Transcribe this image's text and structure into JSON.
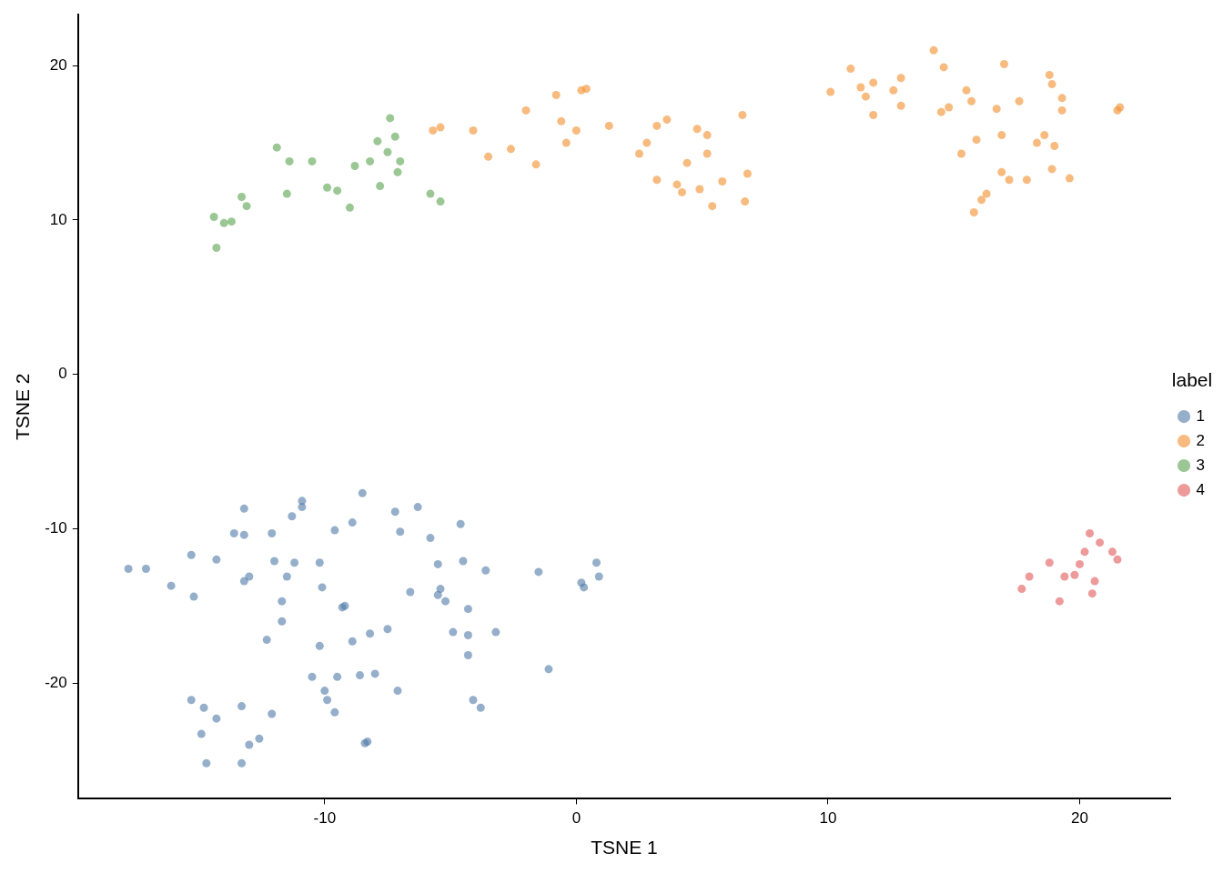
{
  "chart_data": {
    "type": "scatter",
    "x_label": "TSNE 1",
    "y_label": "TSNE 2",
    "xlim": [
      -19.8,
      23.6
    ],
    "ylim": [
      -27.5,
      23.3
    ],
    "xticks": [
      -10,
      0,
      10,
      20
    ],
    "yticks": [
      -20,
      -10,
      0,
      10,
      20
    ],
    "grid": false,
    "legend": "right",
    "legend_title": "label",
    "marker": "circle",
    "series": [
      {
        "name": "1",
        "color": "#4e79a7",
        "x": [
          -17.8,
          -17.1,
          -16.1,
          -15.3,
          -15.2,
          -14.3,
          -15.3,
          -14.8,
          -14.9,
          -14.3,
          -14.7,
          -13.3,
          -13.6,
          -13.2,
          -13.2,
          -13.0,
          -13.2,
          -13.3,
          -13.0,
          -12.6,
          -12.1,
          -12.3,
          -12.1,
          -12.0,
          -11.5,
          -11.2,
          -11.3,
          -11.7,
          -11.7,
          -10.9,
          -10.9,
          -10.2,
          -10.1,
          -10.2,
          -10.5,
          -10.0,
          -9.9,
          -9.6,
          -9.5,
          -9.6,
          -9.2,
          -9.3,
          -8.9,
          -8.9,
          -8.6,
          -8.5,
          -8.3,
          -8.4,
          -8.2,
          -8.0,
          -7.5,
          -7.2,
          -7.0,
          -7.1,
          -6.6,
          -6.3,
          -5.8,
          -5.5,
          -5.5,
          -5.4,
          -5.2,
          -4.9,
          -4.6,
          -4.5,
          -4.3,
          -4.3,
          -4.3,
          -4.1,
          -3.8,
          -3.6,
          -3.2,
          -1.5,
          -1.1,
          0.2,
          0.3,
          0.8,
          0.9
        ],
        "y": [
          -12.6,
          -12.6,
          -13.7,
          -11.7,
          -14.4,
          -12.0,
          -21.1,
          -21.6,
          -23.3,
          -22.3,
          -25.2,
          -25.2,
          -10.3,
          -8.7,
          -10.4,
          -13.1,
          -13.4,
          -21.5,
          -24.0,
          -23.6,
          -22.0,
          -17.2,
          -10.3,
          -12.1,
          -13.1,
          -12.2,
          -9.2,
          -14.7,
          -16.0,
          -8.2,
          -8.6,
          -12.2,
          -13.8,
          -17.6,
          -19.6,
          -20.5,
          -21.1,
          -10.1,
          -19.6,
          -21.9,
          -15.0,
          -15.1,
          -9.6,
          -17.3,
          -19.5,
          -7.7,
          -23.8,
          -23.9,
          -16.8,
          -19.4,
          -16.5,
          -8.9,
          -10.2,
          -20.5,
          -14.1,
          -8.6,
          -10.6,
          -12.3,
          -14.3,
          -13.9,
          -14.7,
          -16.7,
          -9.7,
          -12.1,
          -15.2,
          -16.9,
          -18.2,
          -21.1,
          -21.6,
          -12.7,
          -16.7,
          -12.8,
          -19.1,
          -13.5,
          -13.8,
          -12.2,
          -13.1
        ]
      },
      {
        "name": "2",
        "color": "#f28e2b",
        "x": [
          -5.7,
          -5.4,
          -4.1,
          -3.5,
          -2.6,
          -2.0,
          -1.6,
          -0.8,
          -0.6,
          -0.4,
          0.0,
          0.2,
          0.4,
          1.3,
          2.5,
          2.8,
          3.2,
          3.6,
          3.2,
          4.0,
          4.2,
          4.4,
          4.8,
          5.2,
          5.2,
          4.9,
          5.4,
          5.8,
          6.6,
          6.8,
          6.7,
          10.1,
          10.9,
          11.3,
          11.5,
          11.8,
          11.8,
          12.6,
          12.9,
          12.9,
          14.2,
          14.6,
          14.5,
          14.8,
          15.3,
          15.5,
          15.7,
          15.9,
          15.8,
          16.1,
          16.3,
          16.7,
          16.9,
          16.9,
          17.0,
          17.2,
          17.6,
          17.9,
          18.3,
          18.6,
          18.8,
          18.9,
          19.0,
          18.9,
          19.3,
          19.3,
          19.6,
          21.5,
          21.6
        ],
        "y": [
          15.8,
          16.0,
          15.8,
          14.1,
          14.6,
          17.1,
          13.6,
          18.1,
          16.4,
          15.0,
          15.8,
          18.4,
          18.5,
          16.1,
          14.3,
          15.0,
          16.1,
          16.5,
          12.6,
          12.3,
          11.8,
          13.7,
          15.9,
          15.5,
          14.3,
          12.0,
          10.9,
          12.5,
          16.8,
          13.0,
          11.2,
          18.3,
          19.8,
          18.6,
          18.0,
          18.9,
          16.8,
          18.4,
          17.4,
          19.2,
          21.0,
          19.9,
          17.0,
          17.3,
          14.3,
          18.4,
          17.7,
          15.2,
          10.5,
          11.3,
          11.7,
          17.2,
          13.1,
          15.5,
          20.1,
          12.6,
          17.7,
          12.6,
          15.0,
          15.5,
          19.4,
          18.8,
          14.8,
          13.3,
          17.9,
          17.1,
          12.7,
          17.1,
          17.3
        ]
      },
      {
        "name": "3",
        "color": "#59a14f",
        "x": [
          -11.9,
          -11.4,
          -10.5,
          -7.4,
          -7.2,
          -7.9,
          -7.5,
          -8.2,
          -7.0,
          -8.8,
          -7.1,
          -9.9,
          -9.5,
          -7.8,
          -11.5,
          -13.3,
          -13.1,
          -9.0,
          -5.8,
          -5.4,
          -14.4,
          -14.0,
          -13.7,
          -14.3
        ],
        "y": [
          14.7,
          13.8,
          13.8,
          16.6,
          15.4,
          15.1,
          14.4,
          13.8,
          13.8,
          13.5,
          13.1,
          12.1,
          11.9,
          12.2,
          11.7,
          11.5,
          10.9,
          10.8,
          11.7,
          11.2,
          10.2,
          9.8,
          9.9,
          8.2
        ]
      },
      {
        "name": "4",
        "color": "#e15759",
        "x": [
          20.4,
          20.8,
          20.2,
          21.3,
          21.5,
          18.8,
          20.0,
          19.8,
          19.4,
          18.0,
          20.6,
          17.7,
          20.5,
          19.2
        ],
        "y": [
          -10.3,
          -10.9,
          -11.5,
          -11.5,
          -12.0,
          -12.2,
          -12.3,
          -13.0,
          -13.1,
          -13.1,
          -13.4,
          -13.9,
          -14.2,
          -14.7
        ]
      }
    ]
  }
}
